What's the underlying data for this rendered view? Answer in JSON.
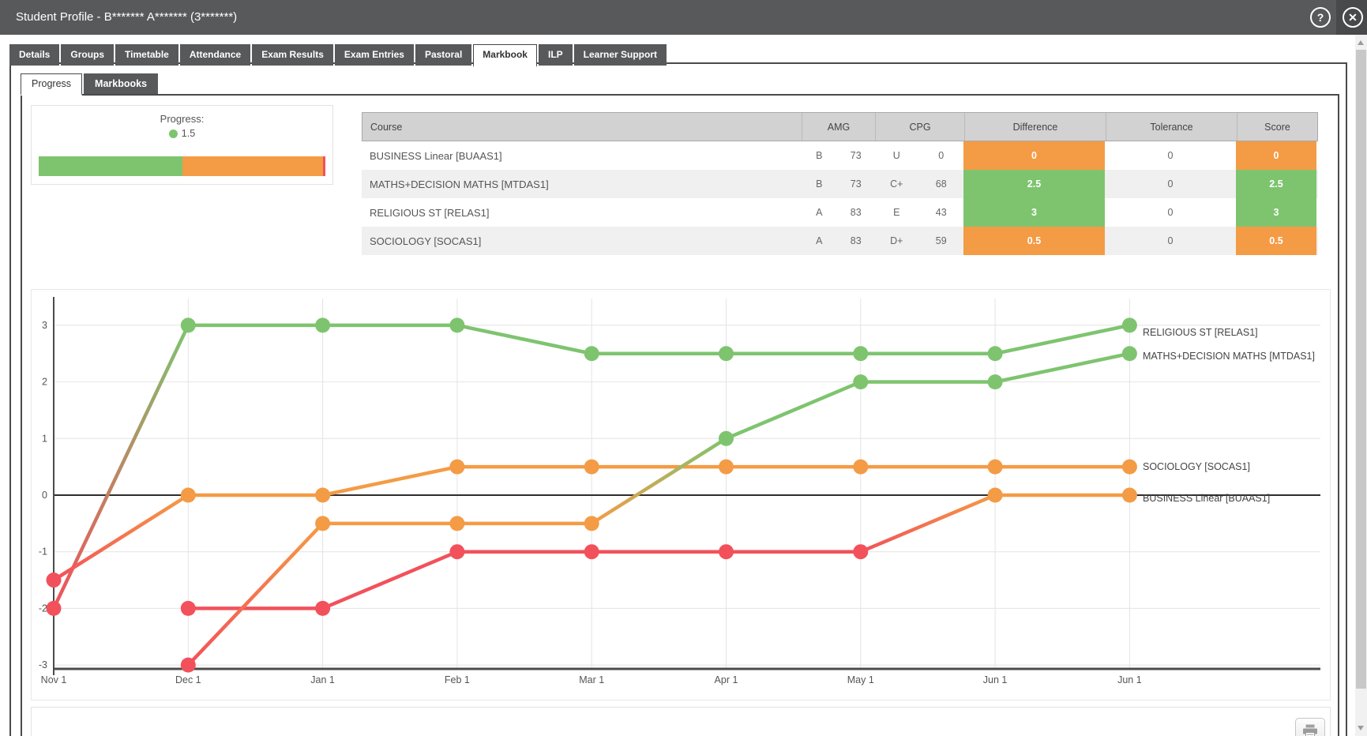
{
  "window": {
    "title": "Student Profile - B******* A******* (3*******)"
  },
  "icons": {
    "help_glyph": "?",
    "close_glyph": "✕"
  },
  "tabs": {
    "active": "Markbook",
    "items": [
      "Details",
      "Groups",
      "Timetable",
      "Attendance",
      "Exam Results",
      "Exam Entries",
      "Pastoral",
      "Markbook",
      "ILP",
      "Learner Support"
    ]
  },
  "subtabs": {
    "active": "Progress",
    "items": [
      "Progress",
      "Markbooks"
    ]
  },
  "progress_summary": {
    "label": "Progress:",
    "value": "1.5",
    "bar": {
      "green_pct": 50,
      "orange_pct": 49.2,
      "red_pct": 0.8
    }
  },
  "course_table": {
    "columns": [
      "Course",
      "AMG",
      "CPG",
      "Difference",
      "Tolerance",
      "Score"
    ],
    "rows": [
      {
        "course": "BUSINESS Linear [BUAAS1]",
        "amg_grade": "B",
        "amg_value": "73",
        "cpg_grade": "U",
        "cpg_value": "0",
        "difference": "0",
        "difference_color": "orange",
        "tolerance": "0",
        "score": "0",
        "score_color": "orange"
      },
      {
        "course": "MATHS+DECISION MATHS [MTDAS1]",
        "amg_grade": "B",
        "amg_value": "73",
        "cpg_grade": "C+",
        "cpg_value": "68",
        "difference": "2.5",
        "difference_color": "green",
        "tolerance": "0",
        "score": "2.5",
        "score_color": "green"
      },
      {
        "course": "RELIGIOUS ST [RELAS1]",
        "amg_grade": "A",
        "amg_value": "83",
        "cpg_grade": "E",
        "cpg_value": "43",
        "difference": "3",
        "difference_color": "green",
        "tolerance": "0",
        "score": "3",
        "score_color": "green"
      },
      {
        "course": "SOCIOLOGY [SOCAS1]",
        "amg_grade": "A",
        "amg_value": "83",
        "cpg_grade": "D+",
        "cpg_value": "59",
        "difference": "0.5",
        "difference_color": "orange",
        "tolerance": "0",
        "score": "0.5",
        "score_color": "orange"
      }
    ]
  },
  "chart_data": {
    "type": "line",
    "title": "",
    "xlabel": "",
    "ylabel": "",
    "categories": [
      "Nov 1",
      "Dec 1",
      "Jan 1",
      "Feb 1",
      "Mar 1",
      "Apr 1",
      "May 1",
      "Jun 1",
      "Jun 1"
    ],
    "ylim": [
      -3,
      3
    ],
    "yticks": [
      3,
      2,
      1,
      0,
      -1,
      -2,
      -3
    ],
    "grid": true,
    "legend_position": "right-end-labels",
    "point_color_rule": "green if value >= 1, red if value <= -1, else orange; segments blend as gradients",
    "series": [
      {
        "name": "RELIGIOUS ST [RELAS1]",
        "values": [
          -2,
          3,
          3,
          3,
          2.5,
          2.5,
          2.5,
          2.5,
          3
        ]
      },
      {
        "name": "SOCIOLOGY [SOCAS1]",
        "values": [
          -1.5,
          0,
          0,
          0.5,
          0.5,
          0.5,
          0.5,
          0.5,
          0.5
        ]
      },
      {
        "name": "BUSINESS Linear [BUAAS1]",
        "values": [
          null,
          -2,
          -2,
          -1,
          -1,
          -1,
          -1,
          0,
          0
        ]
      },
      {
        "name": "MATHS+DECISION MATHS [MTDAS1]",
        "values": [
          null,
          -3,
          -0.5,
          -0.5,
          -0.5,
          1,
          2,
          2,
          2.5
        ]
      }
    ]
  },
  "colors": {
    "green": "#7ec46f",
    "orange": "#f49b45",
    "red": "#f2515b"
  }
}
